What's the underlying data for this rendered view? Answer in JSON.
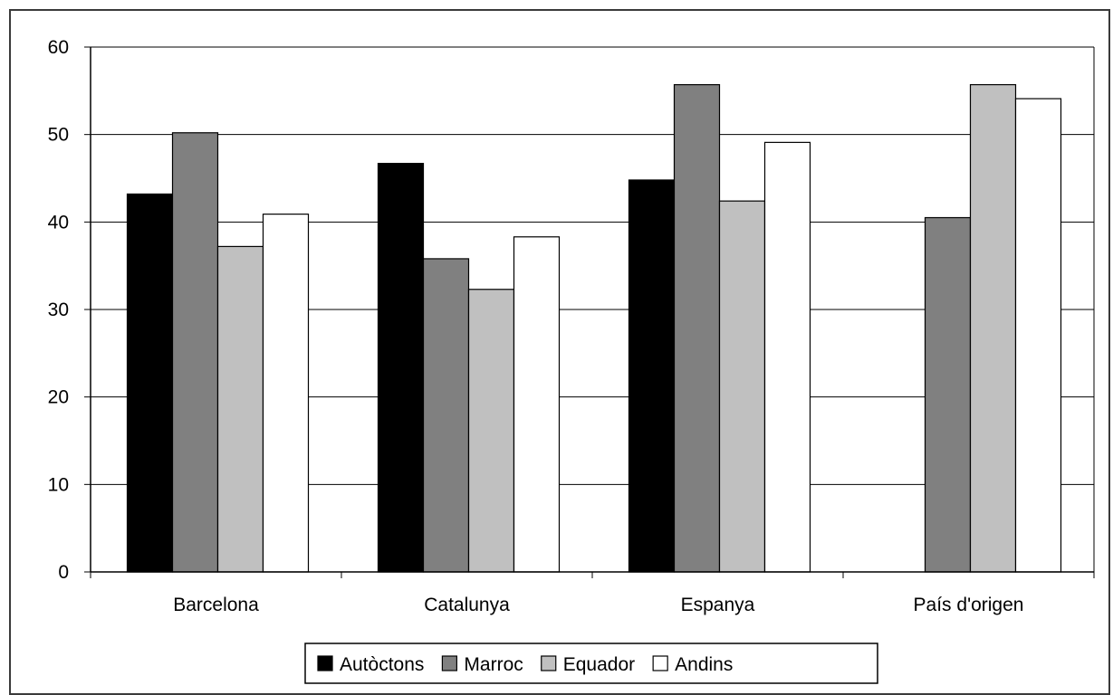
{
  "chart_data": {
    "type": "bar",
    "categories": [
      "Barcelona",
      "Catalunya",
      "Espanya",
      "País d'origen"
    ],
    "series": [
      {
        "name": "Autòctons",
        "color": "#000000",
        "values": [
          43.2,
          46.7,
          44.8,
          null
        ]
      },
      {
        "name": "Marroc",
        "color": "#808080",
        "values": [
          50.2,
          35.8,
          55.7,
          40.5
        ]
      },
      {
        "name": "Equador",
        "color": "#c0c0c0",
        "values": [
          37.2,
          32.3,
          42.4,
          55.7
        ]
      },
      {
        "name": "Andins",
        "color": "#ffffff",
        "values": [
          40.9,
          38.3,
          49.1,
          54.1
        ]
      }
    ],
    "yticks": [
      "0",
      "10",
      "20",
      "30",
      "40",
      "50",
      "60"
    ],
    "ylim": [
      0,
      60
    ],
    "grid": true,
    "legend_position": "bottom"
  }
}
